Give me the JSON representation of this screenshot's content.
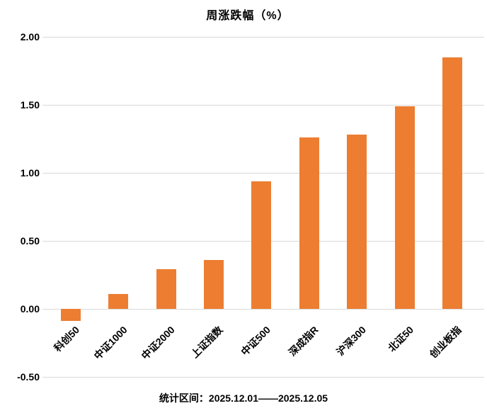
{
  "title": "周涨跌幅（%）",
  "caption": "统计区间：2025.12.01——2025.12.05",
  "colors": {
    "bar": "#ed7d31",
    "gridline": "#d9d9d9",
    "text": "#000000",
    "background": "#ffffff"
  },
  "chart_data": {
    "type": "bar",
    "title": "周涨跌幅（%）",
    "categories": [
      "科创50",
      "中证1000",
      "中证2000",
      "上证指数",
      "中证500",
      "深成指R",
      "沪深300",
      "北证50",
      "创业板指"
    ],
    "values": [
      -0.09,
      0.11,
      0.29,
      0.36,
      0.94,
      1.26,
      1.28,
      1.49,
      1.85
    ],
    "xlabel": "",
    "ylabel": "",
    "ylim": [
      -0.5,
      2.0
    ],
    "yticks": [
      2.0,
      1.5,
      1.0,
      0.5,
      0.0,
      -0.5
    ],
    "ytick_labels": [
      "2.00",
      "1.50",
      "1.00",
      "0.50",
      "0.00",
      "-0.50"
    ],
    "grid": true,
    "legend": "none",
    "bar_color": "#ed7d31",
    "x_label_rotation_deg": 45,
    "footnote": "统计区间：2025.12.01——2025.12.05"
  }
}
